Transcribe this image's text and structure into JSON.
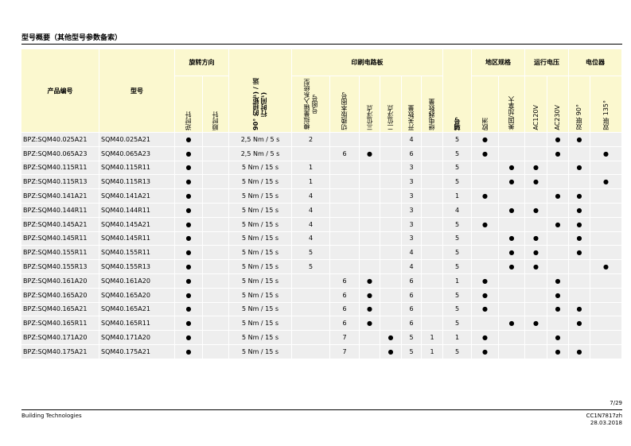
{
  "title": "型号概要（其他型号参数备索）",
  "table": {
    "header": {
      "product": "产品编号",
      "model": "型号",
      "rotation": "旋转方向",
      "ccw": "逆时针",
      "cw": "顺时针",
      "torque": "90° 的扭矩¹) / 运行时间¹)",
      "pcb": "印刷电路板",
      "pcb_cols": [
        "模拟量输入系统型号图号",
        "切换版本图号",
        "三位浮点",
        "二位浮点",
        "开关数量",
        "继电器数量"
      ],
      "code": "辅号",
      "region": "地区规格",
      "region_cols": [
        "欧洲",
        "美国/加拿大"
      ],
      "voltage": "运行电压",
      "voltage_cols": [
        "AC120V",
        "AC230V"
      ],
      "pot": "电位器",
      "pot_cols": [
        "双联 90°",
        "双联 135°"
      ]
    },
    "rows": [
      [
        "BPZ:SQM40.025A21",
        "SQM40.025A21",
        "●",
        null,
        "2,5 Nm / 5 s",
        "2",
        null,
        null,
        null,
        "4",
        null,
        "5",
        "●",
        null,
        null,
        "●",
        "●",
        null
      ],
      [
        "BPZ:SQM40.065A23",
        "SQM40.065A23",
        "●",
        null,
        "2,5 Nm / 5 s",
        null,
        "6",
        "●",
        null,
        "6",
        null,
        "5",
        "●",
        null,
        null,
        "●",
        null,
        "●"
      ],
      [
        "BPZ:SQM40.115R11",
        "SQM40.115R11",
        "●",
        null,
        "5 Nm / 15 s",
        "1",
        null,
        null,
        null,
        "3",
        null,
        "5",
        null,
        "●",
        "●",
        null,
        "●",
        null
      ],
      [
        "BPZ:SQM40.115R13",
        "SQM40.115R13",
        "●",
        null,
        "5 Nm / 15 s",
        "1",
        null,
        null,
        null,
        "3",
        null,
        "5",
        null,
        "●",
        "●",
        null,
        null,
        "●"
      ],
      [
        "BPZ:SQM40.141A21",
        "SQM40.141A21",
        "●",
        null,
        "5 Nm / 15 s",
        "4",
        null,
        null,
        null,
        "3",
        null,
        "1",
        "●",
        null,
        null,
        "●",
        "●",
        null
      ],
      [
        "BPZ:SQM40.144R11",
        "SQM40.144R11",
        "●",
        null,
        "5 Nm / 15 s",
        "4",
        null,
        null,
        null,
        "3",
        null,
        "4",
        null,
        "●",
        "●",
        null,
        "●",
        null
      ],
      [
        "BPZ:SQM40.145A21",
        "SQM40.145A21",
        "●",
        null,
        "5 Nm / 15 s",
        "4",
        null,
        null,
        null,
        "3",
        null,
        "5",
        "●",
        null,
        null,
        "●",
        "●",
        null
      ],
      [
        "BPZ:SQM40.145R11",
        "SQM40.145R11",
        "●",
        null,
        "5 Nm / 15 s",
        "4",
        null,
        null,
        null,
        "3",
        null,
        "5",
        null,
        "●",
        "●",
        null,
        "●",
        null
      ],
      [
        "BPZ:SQM40.155R11",
        "SQM40.155R11",
        "●",
        null,
        "5 Nm / 15 s",
        "5",
        null,
        null,
        null,
        "4",
        null,
        "5",
        null,
        "●",
        "●",
        null,
        "●",
        null
      ],
      [
        "BPZ:SQM40.155R13",
        "SQM40.155R13",
        "●",
        null,
        "5 Nm / 15 s",
        "5",
        null,
        null,
        null,
        "4",
        null,
        "5",
        null,
        "●",
        "●",
        null,
        null,
        "●"
      ],
      [
        "BPZ:SQM40.161A20",
        "SQM40.161A20",
        "●",
        null,
        "5 Nm / 15 s",
        null,
        "6",
        "●",
        null,
        "6",
        null,
        "1",
        "●",
        null,
        null,
        "●",
        null,
        null
      ],
      [
        "BPZ:SQM40.165A20",
        "SQM40.165A20",
        "●",
        null,
        "5 Nm / 15 s",
        null,
        "6",
        "●",
        null,
        "6",
        null,
        "5",
        "●",
        null,
        null,
        "●",
        null,
        null
      ],
      [
        "BPZ:SQM40.165A21",
        "SQM40.165A21",
        "●",
        null,
        "5 Nm / 15 s",
        null,
        "6",
        "●",
        null,
        "6",
        null,
        "5",
        "●",
        null,
        null,
        "●",
        "●",
        null
      ],
      [
        "BPZ:SQM40.165R11",
        "SQM40.165R11",
        "●",
        null,
        "5 Nm / 15 s",
        null,
        "6",
        "●",
        null,
        "6",
        null,
        "5",
        null,
        "●",
        "●",
        null,
        "●",
        null
      ],
      [
        "BPZ:SQM40.171A20",
        "SQM40.171A20",
        "●",
        null,
        "5 Nm / 15 s",
        null,
        "7",
        null,
        "●",
        "5",
        "1",
        "1",
        "●",
        null,
        null,
        "●",
        null,
        null
      ],
      [
        "BPZ:SQM40.175A21",
        "SQM40.175A21",
        "●",
        null,
        "5 Nm / 15 s",
        null,
        "7",
        null,
        "●",
        "5",
        "1",
        "5",
        "●",
        null,
        null,
        "●",
        "●",
        null
      ]
    ]
  },
  "footer": {
    "page": "7/29",
    "company": "Building Technologies",
    "doc": "CC1N7817zh",
    "date": "28.03.2018"
  }
}
